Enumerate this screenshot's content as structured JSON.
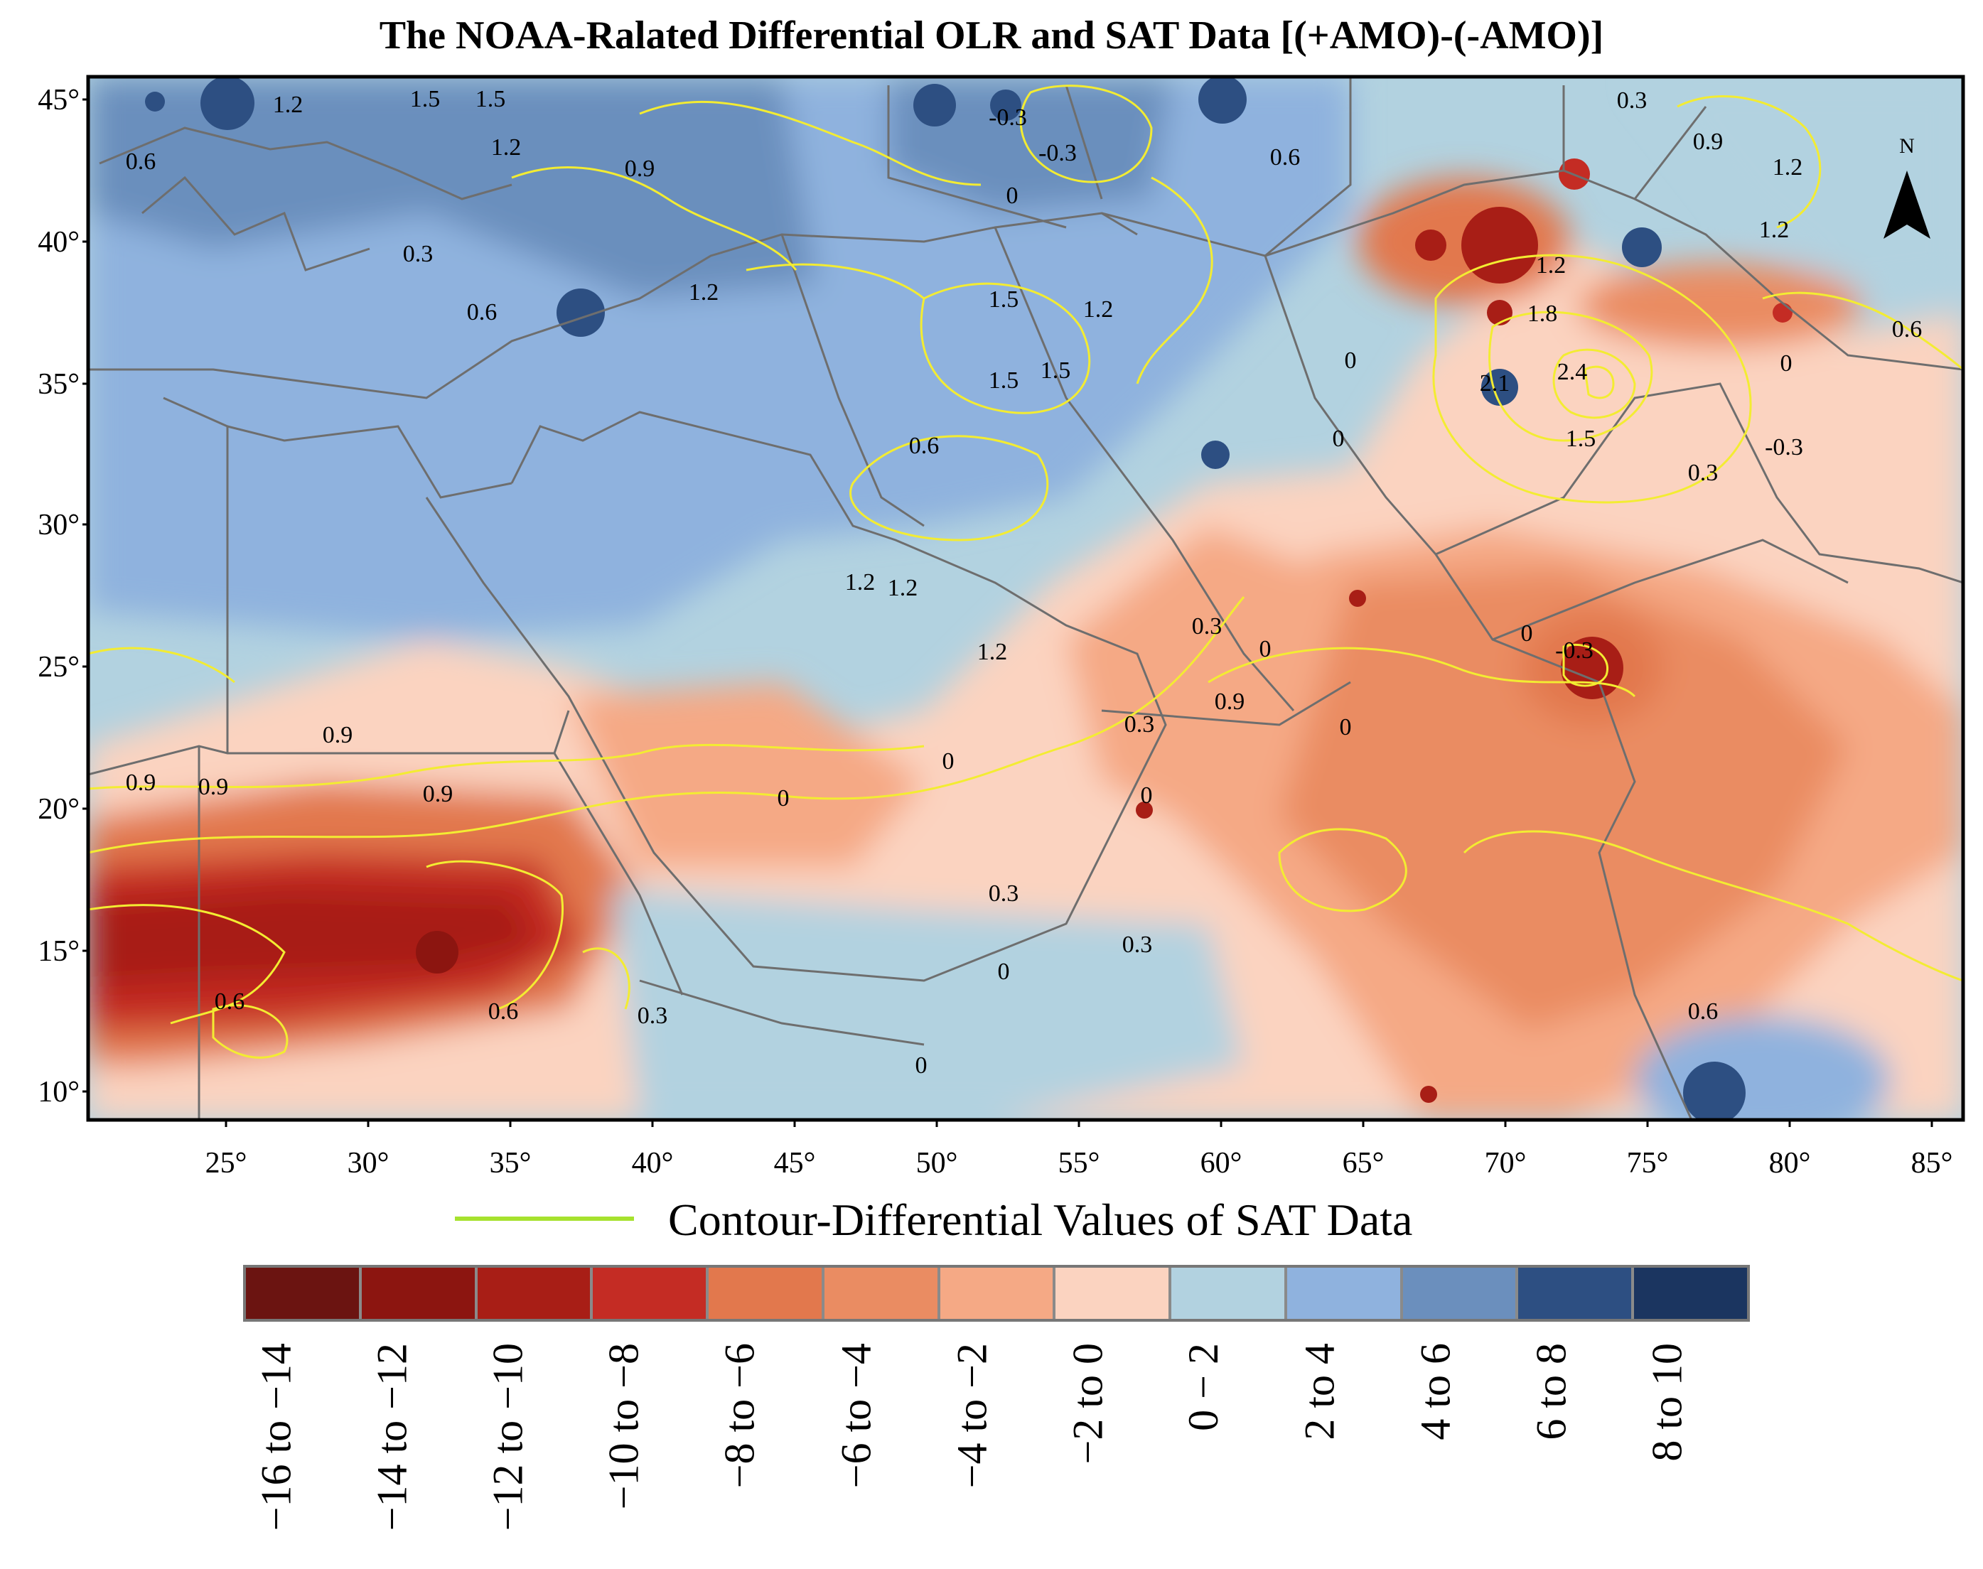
{
  "title": "The NOAA-Ralated Differential OLR and SAT Data [(+AMO)-(-AMO)]",
  "north_arrow": "N",
  "lat_ticks": [
    "45°",
    "40°",
    "35°",
    "30°",
    "25°",
    "20°",
    "15°",
    "10°"
  ],
  "lon_ticks": [
    "25°",
    "30°",
    "35°",
    "40°",
    "45°",
    "50°",
    "55°",
    "60°",
    "65°",
    "70°",
    "75°",
    "80°",
    "85°"
  ],
  "contour_labels": [
    "1.2",
    "1.5",
    "1.5",
    "0.6",
    "1.2",
    "0.9",
    "-0.3",
    "-0.3",
    "0",
    "0.6",
    "0.3",
    "0.9",
    "1.2",
    "1.2",
    "0.3",
    "1.2",
    "1.8",
    "0.6",
    "0.6",
    "1.2",
    "1.5",
    "1.2",
    "1.5",
    "1.5",
    "0",
    "0",
    "2.1",
    "2.4",
    "0",
    "0.6",
    "1.5",
    "-0.3",
    "0.3",
    "1.2",
    "1.2",
    "1.2",
    "0.3",
    "0",
    "0",
    "-0.3",
    "0.9",
    "0.9",
    "0.9",
    "0.9",
    "0",
    "0",
    "0.3",
    "0.9",
    "0",
    "0",
    "0.3",
    "0",
    "0.3",
    "0.6",
    "0.6",
    "0.3",
    "0",
    "0.6"
  ],
  "contour_legend_label": "Contour-Differential Values of SAT Data",
  "legend": [
    {
      "label": "−16 to −14",
      "color": "#6b1411"
    },
    {
      "label": "−14 to −12",
      "color": "#8c1510"
    },
    {
      "label": "−12 to −10",
      "color": "#a81e16"
    },
    {
      "label": "−10 to −8",
      "color": "#c42c24"
    },
    {
      "label": "−8 to −6",
      "color": "#e2784d"
    },
    {
      "label": "−6 to −4",
      "color": "#ea8c62"
    },
    {
      "label": "−4 to −2",
      "color": "#f5a985"
    },
    {
      "label": "−2 to 0",
      "color": "#fbd3c0"
    },
    {
      "label": "0 − 2",
      "color": "#b2d2e0"
    },
    {
      "label": "2 to 4",
      "color": "#8fb2de"
    },
    {
      "label": "4 to 6",
      "color": "#6b8fbd"
    },
    {
      "label": "6 to 8",
      "color": "#2d4f82"
    },
    {
      "label": "8 to 10",
      "color": "#1b3560"
    }
  ]
}
